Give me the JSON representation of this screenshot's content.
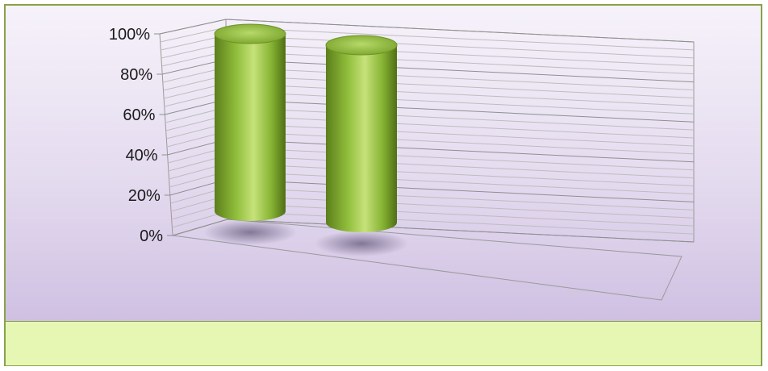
{
  "chart_data": {
    "type": "bar",
    "style": "3d-cylinder",
    "categories": [
      "",
      ""
    ],
    "series": [
      {
        "values": [
          100,
          100
        ]
      }
    ],
    "ylim": [
      0,
      100
    ],
    "yticks": [
      "0%",
      "20%",
      "40%",
      "60%",
      "80%",
      "100%"
    ],
    "grid": true,
    "legend": "none",
    "colors": {
      "bar": "#8fbd3a",
      "bar_highlight": "#c6e27a",
      "bar_shadow": "#5c7e1c",
      "panel_top": "#f6f2fa",
      "panel_bottom": "#cfc0e2",
      "footer": "#e6f7b4",
      "border": "#8aa14a"
    }
  }
}
